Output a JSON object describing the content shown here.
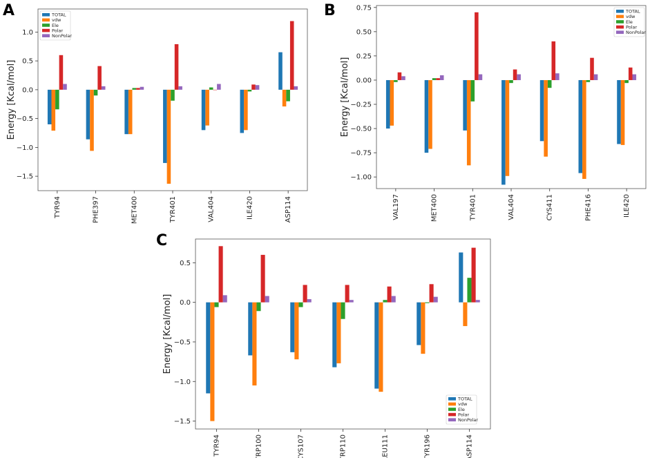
{
  "colors": {
    "TOTAL": "#1f77b4",
    "vdw": "#ff7f0e",
    "Ele": "#2ca02c",
    "Polar": "#d62728",
    "NonPolar": "#9467bd"
  },
  "chart_data": [
    {
      "panel": "A",
      "type": "bar",
      "ylabel": "Energy [Kcal/mol]",
      "xlabel": "",
      "ylim": [
        -1.75,
        1.4
      ],
      "yticks": [
        1.0,
        0.5,
        0.0,
        -0.5,
        -1.0,
        -1.5
      ],
      "ytick_labels": [
        "1.0",
        "0.5",
        "0.0",
        "−0.5",
        "−1.0",
        "−1.5"
      ],
      "legend_position": "top-left",
      "categories": [
        "TYR94",
        "PHE397",
        "MET400",
        "TYR401",
        "VAL404",
        "ILE420",
        "ASP114"
      ],
      "series": [
        {
          "name": "TOTAL",
          "values": [
            -0.6,
            -0.86,
            -0.77,
            -1.27,
            -0.7,
            -0.75,
            0.65
          ]
        },
        {
          "name": "vdw",
          "values": [
            -0.71,
            -1.06,
            -0.77,
            -1.63,
            -0.62,
            -0.7,
            -0.29
          ]
        },
        {
          "name": "Ele",
          "values": [
            -0.34,
            -0.1,
            0.03,
            -0.19,
            0.04,
            -0.03,
            -0.2
          ]
        },
        {
          "name": "Polar",
          "values": [
            0.6,
            0.41,
            0.03,
            0.79,
            0.0,
            0.09,
            1.19
          ]
        },
        {
          "name": "NonPolar",
          "values": [
            0.1,
            0.06,
            0.05,
            0.06,
            0.1,
            0.08,
            0.06
          ]
        }
      ]
    },
    {
      "panel": "B",
      "type": "bar",
      "ylabel": "Energy [Kcal/mol]",
      "xlabel": "",
      "ylim": [
        -1.12,
        0.77
      ],
      "yticks": [
        0.75,
        0.5,
        0.25,
        0.0,
        -0.25,
        -0.5,
        -0.75,
        -1.0
      ],
      "ytick_labels": [
        "0.75",
        "0.50",
        "0.25",
        "0.00",
        "−0.25",
        "−0.50",
        "−0.75",
        "−1.00"
      ],
      "legend_position": "top-right",
      "categories": [
        "VAL197",
        "MET400",
        "TYR401",
        "VAL404",
        "CYS411",
        "PHE416",
        "ILE420"
      ],
      "series": [
        {
          "name": "TOTAL",
          "values": [
            -0.5,
            -0.75,
            -0.52,
            -1.08,
            -0.63,
            -0.96,
            -0.66
          ]
        },
        {
          "name": "vdw",
          "values": [
            -0.47,
            -0.71,
            -0.88,
            -0.99,
            -0.79,
            -1.02,
            -0.67
          ]
        },
        {
          "name": "Ele",
          "values": [
            -0.02,
            0.02,
            -0.22,
            -0.03,
            -0.08,
            -0.02,
            -0.03
          ]
        },
        {
          "name": "Polar",
          "values": [
            0.08,
            0.02,
            0.7,
            0.11,
            0.4,
            0.23,
            0.13
          ]
        },
        {
          "name": "NonPolar",
          "values": [
            0.04,
            0.05,
            0.06,
            0.06,
            0.07,
            0.06,
            0.06
          ]
        }
      ]
    },
    {
      "panel": "C",
      "type": "bar",
      "ylabel": "Energy [Kcal/mol]",
      "xlabel": "",
      "ylim": [
        -1.6,
        0.8
      ],
      "yticks": [
        0.5,
        0.0,
        -0.5,
        -1.0,
        -1.5
      ],
      "ytick_labels": [
        "0.5",
        "0.0",
        "−0.5",
        "−1.0",
        "−1.5"
      ],
      "legend_position": "bottom-right",
      "categories": [
        "TYR94",
        "TRP100",
        "CYS107",
        "TRP110",
        "LEU111",
        "TYR196",
        "ASP114"
      ],
      "series": [
        {
          "name": "TOTAL",
          "values": [
            -1.15,
            -0.67,
            -0.63,
            -0.82,
            -1.09,
            -0.54,
            0.63
          ]
        },
        {
          "name": "vdw",
          "values": [
            -1.5,
            -1.05,
            -0.72,
            -0.77,
            -1.13,
            -0.65,
            -0.3
          ]
        },
        {
          "name": "Ele",
          "values": [
            -0.06,
            -0.11,
            -0.06,
            -0.21,
            0.03,
            -0.01,
            0.31
          ]
        },
        {
          "name": "Polar",
          "values": [
            0.71,
            0.6,
            0.22,
            0.22,
            0.2,
            0.23,
            0.69
          ]
        },
        {
          "name": "NonPolar",
          "values": [
            0.09,
            0.08,
            0.04,
            0.03,
            0.08,
            0.07,
            0.03
          ]
        }
      ]
    }
  ]
}
